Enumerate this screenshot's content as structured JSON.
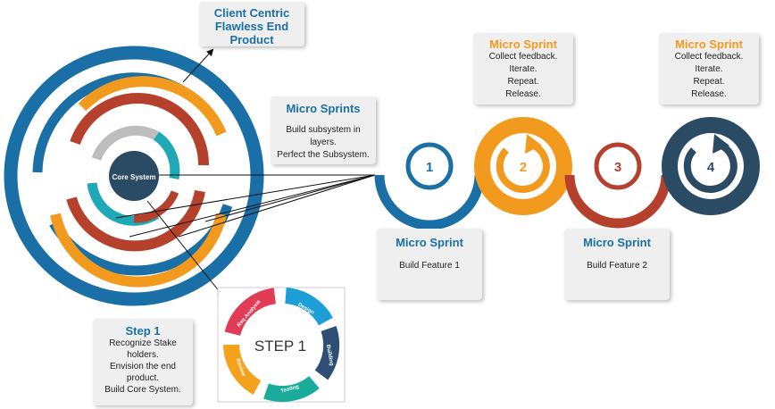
{
  "core_label": "Core System",
  "client_box": {
    "lines": [
      "Client Centric",
      "Flawless End",
      "Product"
    ]
  },
  "micro_sprints_box": {
    "title": "Micro Sprints",
    "lines": [
      "Build subsystem in",
      "layers.",
      "Perfect the Subsystem."
    ]
  },
  "step1_box": {
    "title": "Step 1",
    "lines": [
      "Recognize Stake",
      "holders.",
      "Envision the end",
      "product.",
      "Build Core System."
    ]
  },
  "step_cycle": {
    "center_label": "STEP 1",
    "segments": [
      {
        "label": "Design",
        "color": "#1e9ed6"
      },
      {
        "label": "Building",
        "color": "#2f4e74"
      },
      {
        "label": "Testing",
        "color": "#1aab9b"
      },
      {
        "label": "Review",
        "color": "#f4a21d"
      },
      {
        "label": "Req Analysis",
        "color": "#e23b55"
      }
    ]
  },
  "sprints": [
    {
      "number": "1",
      "color": "#1a6fa6"
    },
    {
      "number": "2",
      "color": "#f29a1e"
    },
    {
      "number": "3",
      "color": "#b5412d"
    },
    {
      "number": "4",
      "color": "#2b4a63"
    }
  ],
  "sprint_cards_top": [
    {
      "title": "Micro Sprint",
      "lines": [
        "Collect feedback.",
        "Iterate.",
        "Repeat.",
        "Release."
      ]
    },
    {
      "title": "Micro Sprint",
      "lines": [
        "Collect feedback.",
        "Iterate.",
        "Repeat.",
        "Release."
      ]
    }
  ],
  "sprint_cards_bottom": [
    {
      "title": "Micro Sprint",
      "lines": [
        "Build Feature 1"
      ]
    },
    {
      "title": "Micro Sprint",
      "lines": [
        "Build Feature 2"
      ]
    }
  ],
  "colors": {
    "blue": "#1a6fa6",
    "orange": "#f29a1e",
    "red": "#b5412d",
    "teal": "#1fa8b5",
    "navy": "#2b4a63",
    "grey": "#bdbdbd"
  }
}
